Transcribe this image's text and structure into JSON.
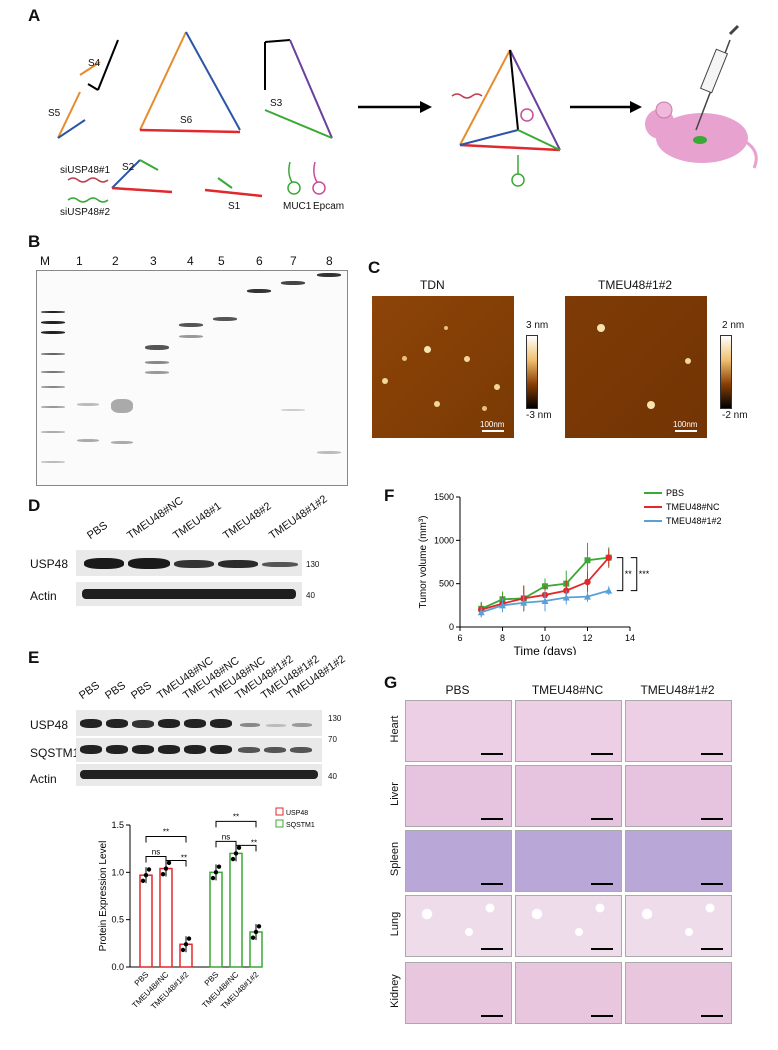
{
  "panels": {
    "a": "A",
    "b": "B",
    "c": "C",
    "d": "D",
    "e": "E",
    "f": "F",
    "g": "G"
  },
  "panelA": {
    "strands": [
      "S4",
      "S5",
      "S6",
      "S3",
      "S2",
      "S1"
    ],
    "sirnas": [
      "siUSP48#1",
      "siUSP48#2"
    ],
    "aptamers": [
      "MUC1",
      "Epcam"
    ]
  },
  "panelB": {
    "lanes": [
      "M",
      "1",
      "2",
      "3",
      "4",
      "5",
      "6",
      "7",
      "8"
    ]
  },
  "panelC": {
    "images": [
      {
        "title": "TDN",
        "scale_max": "3 nm",
        "scale_min": "-3 nm",
        "bar": "100nm"
      },
      {
        "title": "TMEU48#1#2",
        "scale_max": "2 nm",
        "scale_min": "-2 nm",
        "bar": "100nm"
      }
    ]
  },
  "panelD": {
    "lanes": [
      "PBS",
      "TMEU48#NC",
      "TMEU48#1",
      "TMEU48#2",
      "TMEU48#1#2"
    ],
    "rows": [
      {
        "name": "USP48",
        "mw": "130"
      },
      {
        "name": "Actin",
        "mw": "40"
      }
    ]
  },
  "panelE": {
    "lanes": [
      "PBS",
      "PBS",
      "PBS",
      "TMEU48#NC",
      "TMEU48#NC",
      "TMEU48#NC",
      "TMEU48#1#2",
      "TMEU48#1#2",
      "TMEU48#1#2"
    ],
    "rows": [
      {
        "name": "USP48",
        "mw": "130"
      },
      {
        "name": "SQSTM1",
        "mw": "70"
      },
      {
        "name": "Actin",
        "mw": "40"
      }
    ]
  },
  "colors": {
    "red": "#e0282d",
    "green": "#3aa935",
    "blue": "#5aa0d8",
    "orange": "#e58c2e",
    "purple": "#6a3fa0"
  },
  "chart_data": [
    {
      "type": "line",
      "title": "",
      "xlabel": "Time (days)",
      "ylabel": "Tumor volume (mm³)",
      "xlim": [
        6,
        14
      ],
      "ylim": [
        0,
        1500
      ],
      "xticks": [
        "6",
        "8",
        "10",
        "12",
        "14"
      ],
      "yticks": [
        "0",
        "500",
        "1000",
        "1500"
      ],
      "legend": "top-right",
      "x": [
        7,
        8,
        9,
        10,
        11,
        12,
        13
      ],
      "series": [
        {
          "name": "PBS",
          "color": "#3aa935",
          "values": [
            210,
            320,
            330,
            470,
            500,
            770,
            800
          ],
          "err": [
            80,
            90,
            140,
            90,
            150,
            200,
            120
          ]
        },
        {
          "name": "TMEU48#NC",
          "color": "#e0282d",
          "values": [
            200,
            270,
            330,
            370,
            420,
            520,
            800
          ],
          "err": [
            80,
            80,
            150,
            100,
            120,
            120,
            100
          ]
        },
        {
          "name": "TMEU48#1#2",
          "color": "#5aa0d8",
          "values": [
            170,
            250,
            280,
            300,
            340,
            350,
            420
          ],
          "err": [
            60,
            80,
            90,
            120,
            80,
            60,
            50
          ]
        }
      ],
      "significance": [
        "**",
        "***"
      ]
    },
    {
      "type": "bar",
      "title": "",
      "xlabel": "",
      "ylabel": "Protein Expression Level",
      "ylim": [
        0,
        1.5
      ],
      "yticks": [
        "0.0",
        "0.5",
        "1.0",
        "1.5"
      ],
      "legend": "top-right",
      "categories": [
        "PBS",
        "TMEU48#NC",
        "TMEU48#1#2"
      ],
      "series": [
        {
          "name": "USP48",
          "color": "#e0282d",
          "values": [
            0.97,
            1.04,
            0.24
          ]
        },
        {
          "name": "SQSTM1",
          "color": "#3aa935",
          "values": [
            1.0,
            1.2,
            0.37
          ]
        }
      ],
      "significance": [
        "ns",
        "**",
        "**",
        "ns",
        "**",
        "**"
      ]
    }
  ],
  "panelG": {
    "columns": [
      "PBS",
      "TMEU48#NC",
      "TMEU48#1#2"
    ],
    "rows": [
      "Heart",
      "Liver",
      "Spleen",
      "Lung",
      "Kidney"
    ]
  }
}
